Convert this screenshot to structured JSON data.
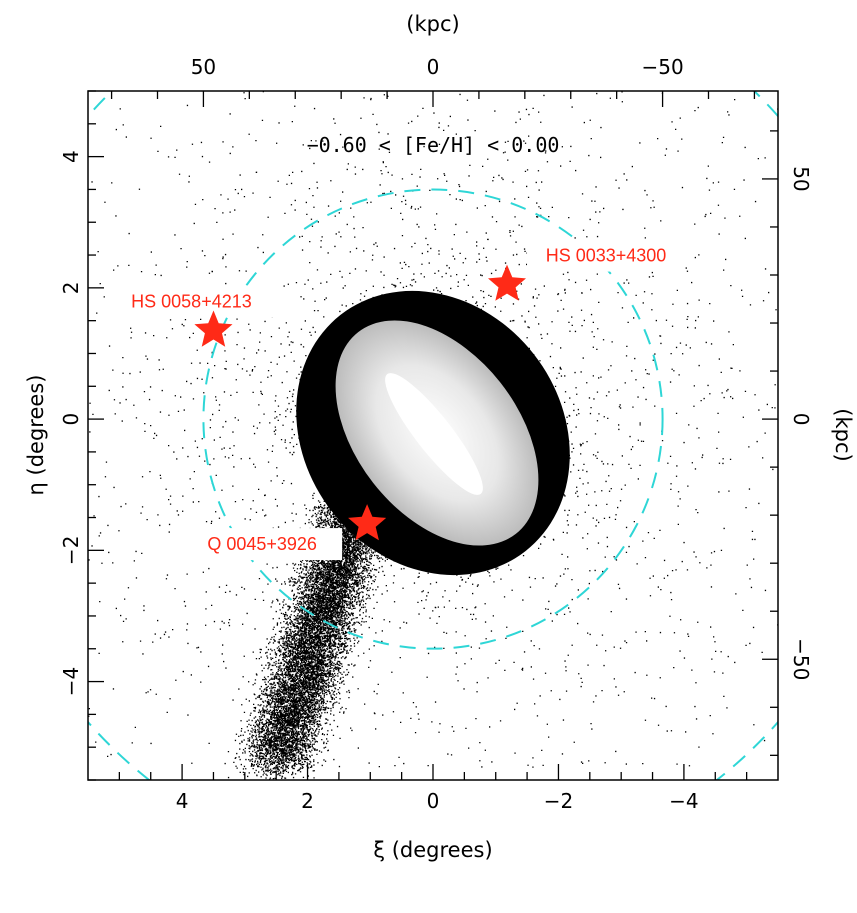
{
  "chart_data": {
    "type": "scatter",
    "title": "−0.60 < [Fe/H] <  0.00",
    "xlabel": "ξ (degrees)",
    "ylabel": "η (degrees)",
    "top_axis_label": "(kpc)",
    "right_axis_label": "(kpc)",
    "xlim": [
      5.5,
      -5.5
    ],
    "ylim": [
      -5.5,
      5.0
    ],
    "x_ticks": [
      4,
      2,
      0,
      -2,
      -4
    ],
    "y_ticks": [
      -4,
      -2,
      0,
      2,
      4
    ],
    "x_tick_labels": [
      "4",
      "2",
      "0",
      "−2",
      "−4"
    ],
    "y_tick_labels": [
      "−4",
      "−2",
      "0",
      "2",
      "4"
    ],
    "top_ticks_deg": [
      3.66,
      0,
      -3.66
    ],
    "top_tick_labels": [
      "50",
      "0",
      "−50"
    ],
    "right_ticks_deg": [
      3.66,
      0,
      -3.66
    ],
    "right_tick_labels": [
      "50",
      "0",
      "−50"
    ],
    "circles": [
      {
        "center": [
          0,
          0
        ],
        "radius_deg": 3.66,
        "radius_kpc": 50,
        "style": "dashed",
        "color": "#2ed6d6"
      },
      {
        "center": [
          0,
          0
        ],
        "radius_deg": 7.32,
        "radius_kpc": 100,
        "style": "dashed",
        "color": "#2ed6d6"
      }
    ],
    "quasars": [
      {
        "name": "HS 0058+4213",
        "xi": 3.5,
        "eta": 1.35
      },
      {
        "name": "HS 0033+4300",
        "xi": -1.18,
        "eta": 2.05
      },
      {
        "name": "Q 0045+3926",
        "xi": 1.05,
        "eta": -1.6
      }
    ],
    "density_description": "M31 stellar density map; inner disk region saturated",
    "colors": {
      "points": "#000000",
      "circle": "#2ed6d6",
      "star": "#ff2a17",
      "label": "#ff2a17"
    }
  }
}
